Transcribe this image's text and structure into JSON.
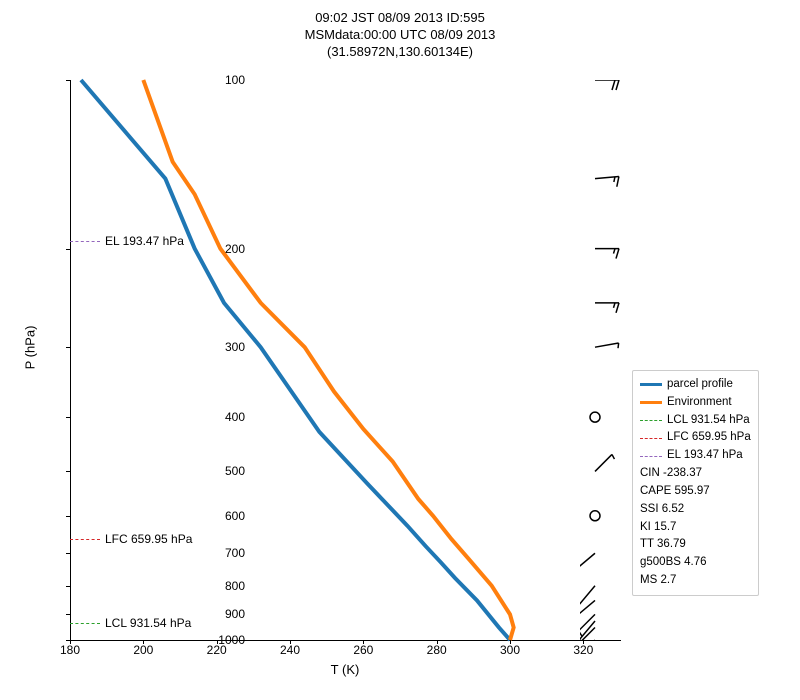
{
  "title_line1": "09:02 JST 08/09 2013  ID:595",
  "title_line2": "MSMdata:00:00 UTC 08/09 2013",
  "title_line3": "(31.58972N,130.60134E)",
  "ylabel": "P (hPa)",
  "xlabel": "T (K)",
  "chart": {
    "type": "line",
    "xlim": [
      180,
      330
    ],
    "ylim_hpa": [
      1000,
      100
    ],
    "yscale": "log",
    "xticks": [
      180,
      200,
      220,
      240,
      260,
      280,
      300,
      320
    ],
    "yticks_hpa": [
      100,
      200,
      300,
      400,
      500,
      600,
      700,
      800,
      900,
      1000
    ],
    "background_color": "#ffffff",
    "axis_color": "#000000",
    "parcel": {
      "color": "#1f77b4",
      "width": 4,
      "T": [
        300,
        297,
        291,
        285,
        281,
        277,
        272,
        261,
        248,
        232,
        222,
        214,
        206,
        183
      ],
      "P": [
        1000,
        950,
        850,
        775,
        725,
        680,
        625,
        525,
        425,
        300,
        250,
        200,
        150,
        100
      ]
    },
    "environment": {
      "color": "#ff7f0e",
      "width": 4,
      "T": [
        300,
        301,
        300,
        295,
        289,
        284,
        279,
        275,
        268,
        260,
        252,
        244,
        232,
        221,
        214,
        208,
        200
      ],
      "P": [
        1000,
        950,
        900,
        800,
        720,
        660,
        600,
        560,
        480,
        420,
        360,
        300,
        250,
        200,
        160,
        140,
        100
      ]
    }
  },
  "levels": {
    "lcl": {
      "label": "LCL 931.54 hPa",
      "p": 931.54,
      "color": "#2ca02c"
    },
    "lfc": {
      "label": "LFC 659.95 hPa",
      "p": 659.95,
      "color": "#d62728"
    },
    "el": {
      "label": "EL 193.47 hPa",
      "p": 193.47,
      "color": "#9467bd"
    }
  },
  "indices": {
    "CIN": "CIN -238.37",
    "CAPE": "CAPE 595.97",
    "SSI": "SSI 6.52",
    "KI": "KI 15.7",
    "TT": "TT 36.79",
    "g500BS": "g500BS 4.76",
    "MS": "MS 2.7"
  },
  "legend": {
    "parcel": "parcel profile",
    "env": "Environment",
    "lcl": "LCL 931.54 hPa",
    "lfc": "LFC 659.95 hPa",
    "el": "EL 193.47 hPa"
  },
  "wind_barbs": [
    {
      "p": 1000,
      "dir": 225,
      "spd": 15
    },
    {
      "p": 950,
      "dir": 225,
      "spd": 15
    },
    {
      "p": 925,
      "dir": 220,
      "spd": 15
    },
    {
      "p": 900,
      "dir": 225,
      "spd": 10
    },
    {
      "p": 850,
      "dir": 230,
      "spd": 10
    },
    {
      "p": 800,
      "dir": 220,
      "spd": 10
    },
    {
      "p": 700,
      "dir": 230,
      "spd": 10
    },
    {
      "p": 600,
      "dir": 0,
      "spd": 0
    },
    {
      "p": 500,
      "dir": 45,
      "spd": 5
    },
    {
      "p": 400,
      "dir": 0,
      "spd": 0
    },
    {
      "p": 300,
      "dir": 80,
      "spd": 5
    },
    {
      "p": 250,
      "dir": 90,
      "spd": 15
    },
    {
      "p": 200,
      "dir": 90,
      "spd": 15
    },
    {
      "p": 150,
      "dir": 85,
      "spd": 15
    },
    {
      "p": 100,
      "dir": 90,
      "spd": 20
    }
  ]
}
